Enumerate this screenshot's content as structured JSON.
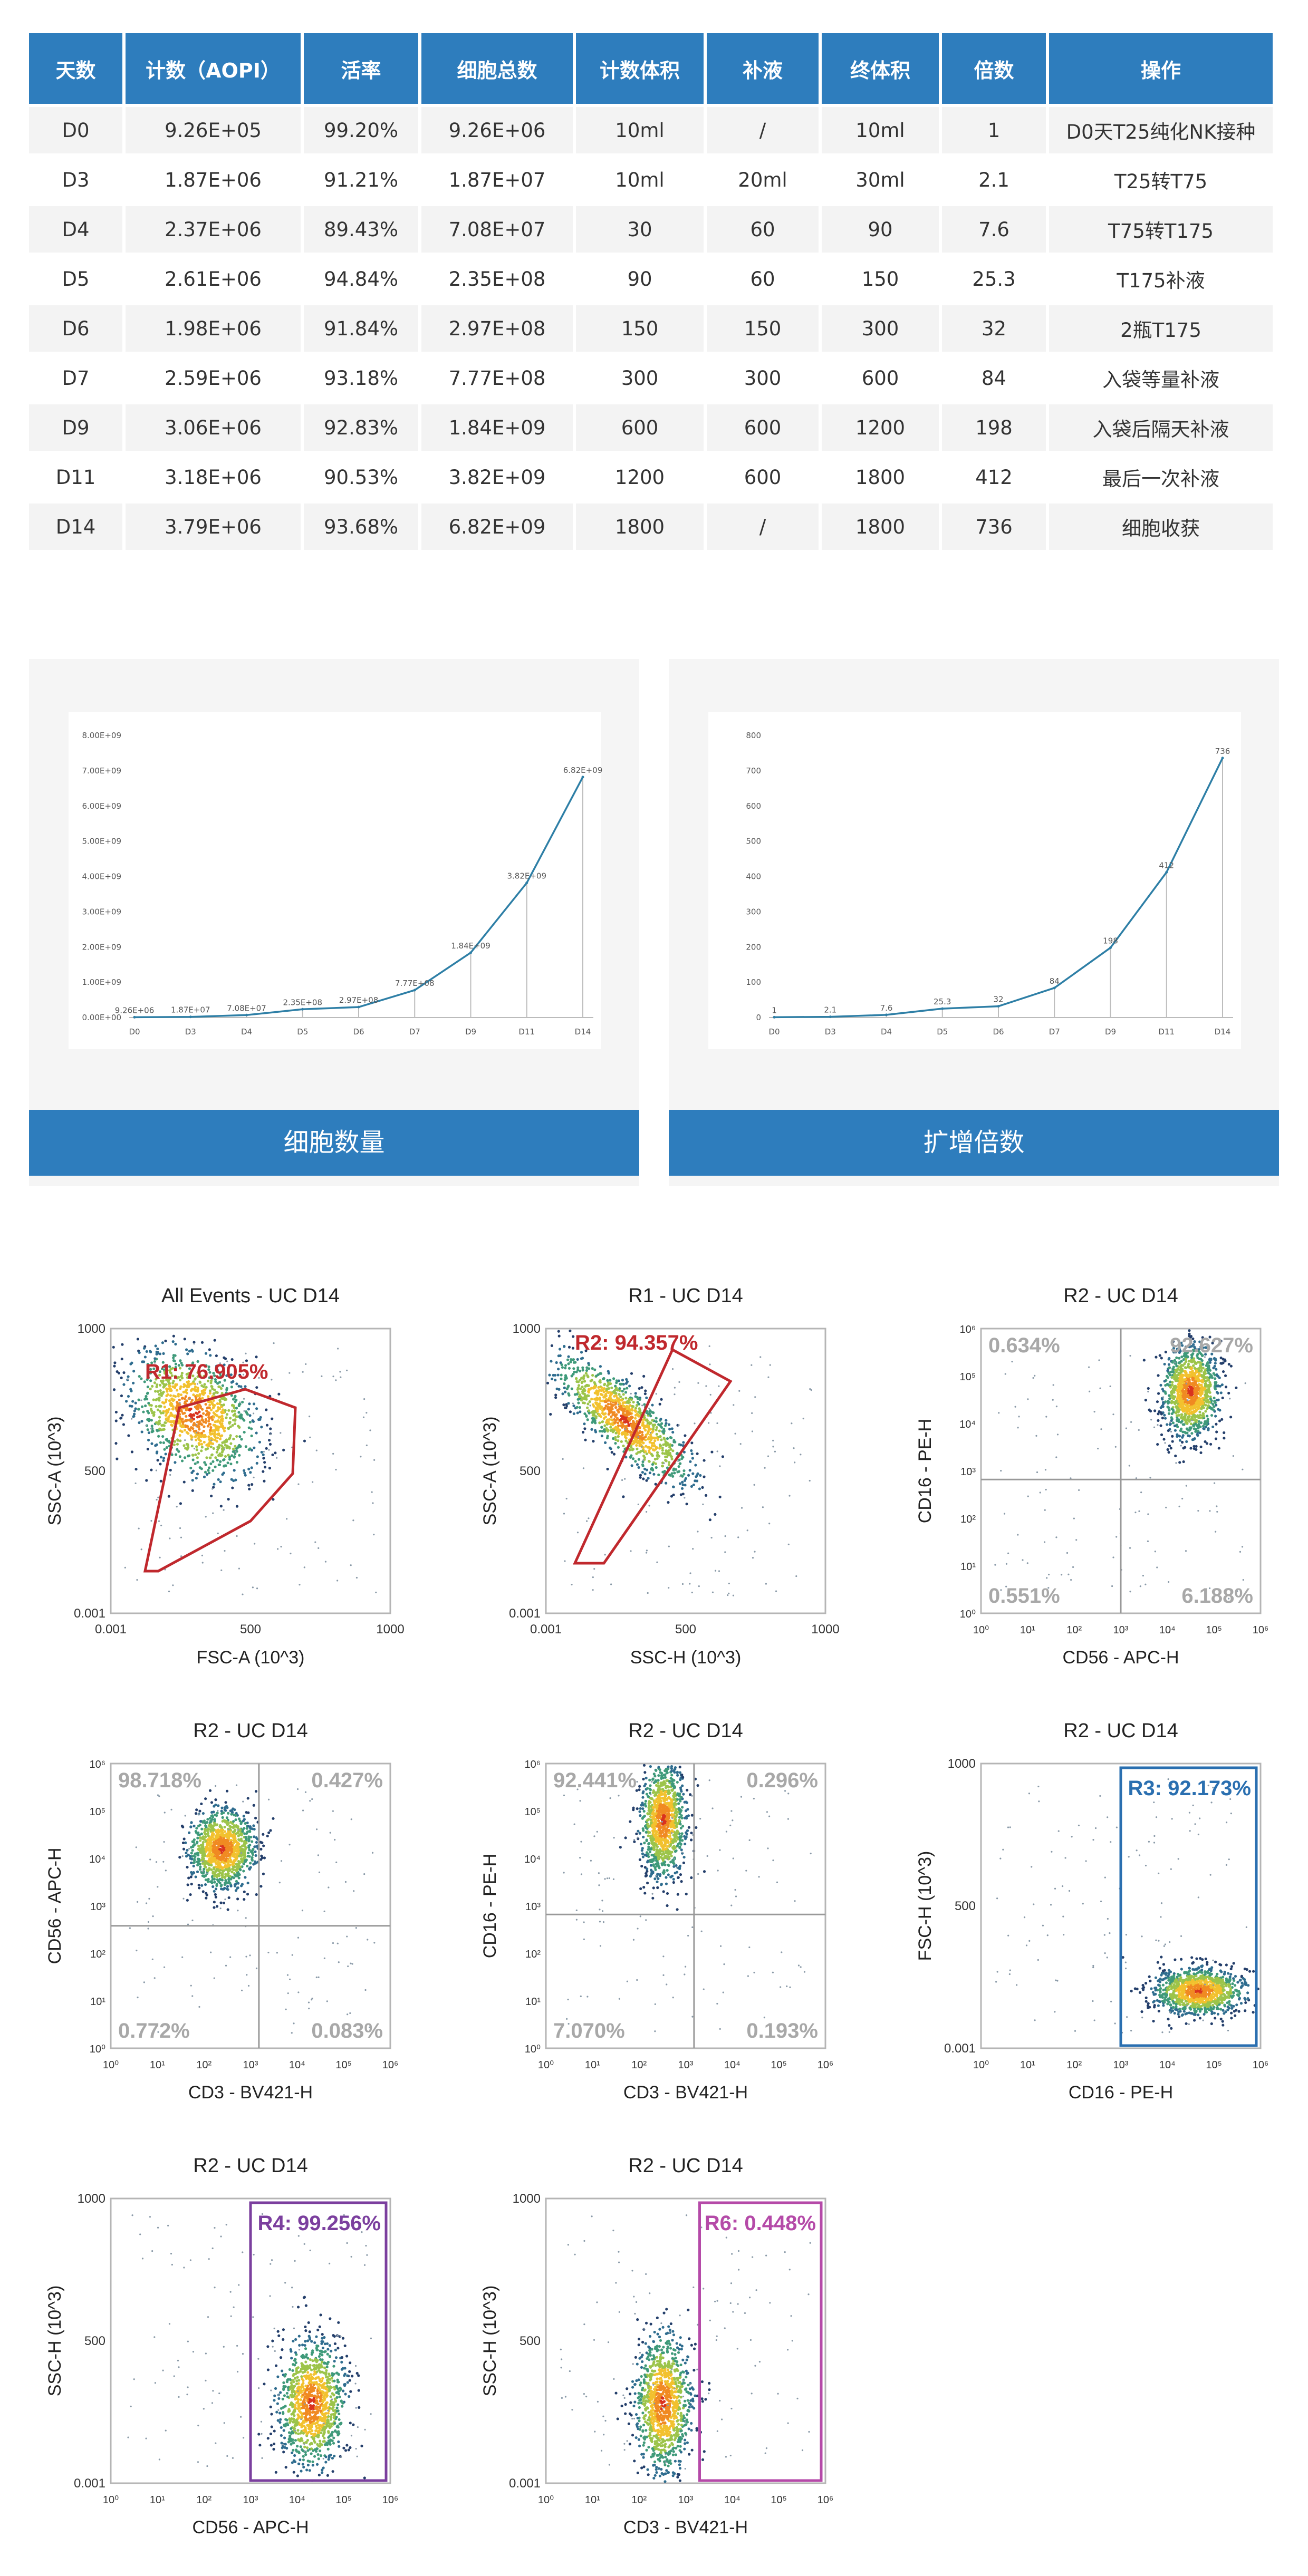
{
  "table": {
    "headers": [
      "天数",
      "计数（AOPI）",
      "活率",
      "细胞总数",
      "计数体积",
      "补液",
      "终体积",
      "倍数",
      "操作"
    ],
    "rows": [
      [
        "D0",
        "9.26E+05",
        "99.20%",
        "9.26E+06",
        "10ml",
        "/",
        "10ml",
        "1",
        "D0天T25纯化NK接种"
      ],
      [
        "D3",
        "1.87E+06",
        "91.21%",
        "1.87E+07",
        "10ml",
        "20ml",
        "30ml",
        "2.1",
        "T25转T75"
      ],
      [
        "D4",
        "2.37E+06",
        "89.43%",
        "7.08E+07",
        "30",
        "60",
        "90",
        "7.6",
        "T75转T175"
      ],
      [
        "D5",
        "2.61E+06",
        "94.84%",
        "2.35E+08",
        "90",
        "60",
        "150",
        "25.3",
        "T175补液"
      ],
      [
        "D6",
        "1.98E+06",
        "91.84%",
        "2.97E+08",
        "150",
        "150",
        "300",
        "32",
        "2瓶T175"
      ],
      [
        "D7",
        "2.59E+06",
        "93.18%",
        "7.77E+08",
        "300",
        "300",
        "600",
        "84",
        "入袋等量补液"
      ],
      [
        "D9",
        "3.06E+06",
        "92.83%",
        "1.84E+09",
        "600",
        "600",
        "1200",
        "198",
        "入袋后隔天补液"
      ],
      [
        "D11",
        "3.18E+06",
        "90.53%",
        "3.82E+09",
        "1200",
        "600",
        "1800",
        "412",
        "最后一次补液"
      ],
      [
        "D14",
        "3.79E+06",
        "93.68%",
        "6.82E+09",
        "1800",
        "/",
        "1800",
        "736",
        "细胞收获"
      ]
    ]
  },
  "colors": {
    "accent": "#2e7dbd",
    "line": "#2e7fa6",
    "red": "#c0282d",
    "blue": "#2a6fb0",
    "purple": "#7b3f9e",
    "magenta": "#b54aa8"
  },
  "chart_data": [
    {
      "type": "line",
      "caption": "细胞数量",
      "categories": [
        "D0",
        "D3",
        "D4",
        "D5",
        "D6",
        "D7",
        "D9",
        "D11",
        "D14"
      ],
      "values": [
        9260000.0,
        18700000.0,
        70800000.0,
        235000000.0,
        297000000.0,
        777000000.0,
        1840000000.0,
        3820000000.0,
        6820000000.0
      ],
      "labels": [
        "9.26E+06",
        "1.87E+07",
        "7.08E+07",
        "2.35E+08",
        "2.97E+08",
        "7.77E+08",
        "1.84E+09",
        "3.82E+09",
        "6.82E+09"
      ],
      "ylim": [
        0,
        8000000000.0
      ],
      "yticks": [
        "0.00E+00",
        "1.00E+09",
        "2.00E+09",
        "3.00E+09",
        "4.00E+09",
        "5.00E+09",
        "6.00E+09",
        "7.00E+09",
        "8.00E+09"
      ]
    },
    {
      "type": "line",
      "caption": "扩增倍数",
      "categories": [
        "D0",
        "D3",
        "D4",
        "D5",
        "D6",
        "D7",
        "D9",
        "D11",
        "D14"
      ],
      "values": [
        1,
        2.1,
        7.6,
        25.3,
        32,
        84,
        198,
        412,
        736
      ],
      "labels": [
        "1",
        "2.1",
        "7.6",
        "25.3",
        "32",
        "84",
        "198",
        "412",
        "736"
      ],
      "ylim": [
        0,
        800
      ],
      "yticks": [
        "0",
        "100",
        "200",
        "300",
        "400",
        "500",
        "600",
        "700",
        "800"
      ]
    },
    {
      "type": "scatter",
      "title": "All Events - UC D14",
      "xlabel": "FSC-A (10^3)",
      "ylabel": "SSC-A (10^3)",
      "axis": "lin",
      "xticks": [
        "0.001",
        "500",
        "1000"
      ],
      "yticks": [
        "0.001",
        "500",
        "1000"
      ],
      "gates": [
        {
          "label": "R1: 76.905%",
          "color": "#c0282d"
        }
      ],
      "quadrants": [],
      "cluster": {
        "cx": 0.3,
        "cy": 0.3,
        "sx": 0.09,
        "sy": 0.13,
        "angle": -45
      }
    },
    {
      "type": "scatter",
      "title": "R1 - UC D14",
      "xlabel": "SSC-H (10^3)",
      "ylabel": "SSC-A (10^3)",
      "axis": "lin",
      "xticks": [
        "0.001",
        "500",
        "1000"
      ],
      "yticks": [
        "0.001",
        "500",
        "1000"
      ],
      "gates": [
        {
          "label": "R2: 94.357%",
          "color": "#c0282d"
        }
      ],
      "quadrants": [],
      "cluster": {
        "cx": 0.28,
        "cy": 0.32,
        "sx": 0.05,
        "sy": 0.16,
        "angle": -48
      }
    },
    {
      "type": "scatter",
      "title": "R2 - UC D14",
      "xlabel": "CD56 - APC-H",
      "ylabel": "CD16 - PE-H",
      "axis": "log",
      "gates": [],
      "quadrants": [
        "0.634%",
        "92.627%",
        "0.551%",
        "6.188%"
      ],
      "cluster": {
        "cx": 0.75,
        "cy": 0.22,
        "sx": 0.05,
        "sy": 0.08,
        "angle": 0
      }
    },
    {
      "type": "scatter",
      "title": "R2 - UC D14",
      "xlabel": "CD3 - BV421-H",
      "ylabel": "CD56 - APC-H",
      "axis": "log",
      "gates": [],
      "quadrants": [
        "98.718%",
        "0.427%",
        "0.772%",
        "0.083%"
      ],
      "cluster": {
        "cx": 0.4,
        "cy": 0.3,
        "sx": 0.06,
        "sy": 0.07,
        "angle": 0
      }
    },
    {
      "type": "scatter",
      "title": "R2 - UC D14",
      "xlabel": "CD3 - BV421-H",
      "ylabel": "CD16 - PE-H",
      "axis": "log",
      "gates": [],
      "quadrants": [
        "92.441%",
        "0.296%",
        "7.070%",
        "0.193%"
      ],
      "cluster": {
        "cx": 0.42,
        "cy": 0.2,
        "sx": 0.04,
        "sy": 0.1,
        "angle": 0
      }
    },
    {
      "type": "scatter",
      "title": "R2 - UC D14",
      "xlabel": "CD16 - PE-H",
      "ylabel": "FSC-H (10^3)",
      "axis": "xlog",
      "xticks": [
        "10⁰",
        "10¹",
        "10²",
        "10³",
        "10⁴",
        "10⁵",
        "10⁶"
      ],
      "yticks": [
        "0.001",
        "500",
        "1000"
      ],
      "gates": [
        {
          "label": "R3: 92.173%",
          "color": "#2a6fb0"
        }
      ],
      "quadrants": [],
      "cluster": {
        "cx": 0.78,
        "cy": 0.8,
        "sx": 0.08,
        "sy": 0.04,
        "angle": 0
      }
    },
    {
      "type": "scatter",
      "title": "R2 - UC D14",
      "xlabel": "CD56 - APC-H",
      "ylabel": "SSC-H (10^3)",
      "axis": "xlog",
      "xticks": [
        "10⁰",
        "10¹",
        "10²",
        "10³",
        "10⁴",
        "10⁵",
        "10⁶"
      ],
      "yticks": [
        "0.001",
        "500",
        "1000"
      ],
      "gates": [
        {
          "label": "R4: 99.256%",
          "color": "#7b3f9e"
        }
      ],
      "quadrants": [],
      "cluster": {
        "cx": 0.72,
        "cy": 0.72,
        "sx": 0.06,
        "sy": 0.11,
        "angle": 0
      }
    },
    {
      "type": "scatter",
      "title": "R2 - UC D14",
      "xlabel": "CD3 - BV421-H",
      "ylabel": "SSC-H (10^3)",
      "axis": "xlog",
      "xticks": [
        "10⁰",
        "10¹",
        "10²",
        "10³",
        "10⁴",
        "10⁵",
        "10⁶"
      ],
      "yticks": [
        "0.001",
        "500",
        "1000"
      ],
      "gates": [
        {
          "label": "R6: 0.448%",
          "color": "#b54aa8"
        }
      ],
      "quadrants": [],
      "cluster": {
        "cx": 0.42,
        "cy": 0.72,
        "sx": 0.05,
        "sy": 0.12,
        "angle": 0
      }
    }
  ]
}
